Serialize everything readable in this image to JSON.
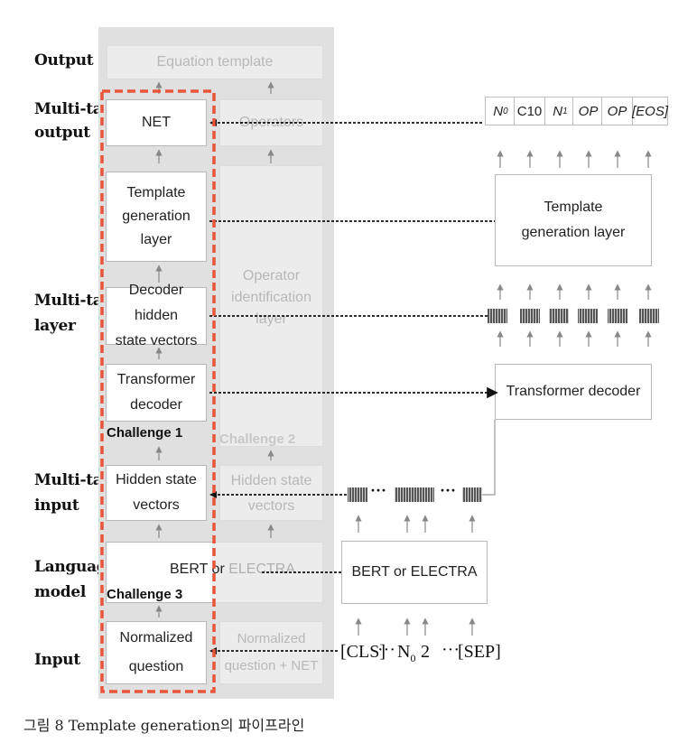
{
  "row_labels": {
    "output": "Output",
    "multitask_output_1": "Multi-task",
    "multitask_output_2": "output",
    "multitask_layer_1": "Multi-task",
    "multitask_layer_2": "layer",
    "multitask_input_1": "Multi-task",
    "multitask_input_2": "input",
    "language_model_1": "Language",
    "language_model_2": "model",
    "input": "Input"
  },
  "pipeline": {
    "equation_template": "Equation template",
    "net": "NET",
    "operators": "Operators",
    "template_generation_layer": "Template\ngeneration layer",
    "operator_identification_layer": "Operator\nidentification\nlayer",
    "decoder_hidden_state_vectors": "Decoder hidden\nstate vectors",
    "transformer_decoder": "Transformer\ndecoder",
    "challenge_1": "Challenge 1",
    "challenge_2": "Challenge 2",
    "hidden_state_vectors": "Hidden state\nvectors",
    "hidden_state_vectors_gray": "Hidden state\nvectors",
    "bert_or_electra_left": "BERT or ",
    "bert_or_electra_left_gray": "ELECTRA",
    "challenge_3": "Challenge 3",
    "normalized_question": "Normalized\nquestion",
    "normalized_question_net": "Normalized\nquestion + NET"
  },
  "detail": {
    "tokens": [
      "N",
      "C10",
      "N",
      "OP",
      "OP",
      "[EOS]"
    ],
    "token_subscripts": [
      "0",
      "",
      "1",
      "",
      "",
      ""
    ],
    "template_generation_layer": "Template\ngeneration layer",
    "transformer_decoder": "Transformer decoder",
    "bert_or_electra": "BERT or ELECTRA",
    "input_cls": "[CLS]",
    "input_dots1": "···",
    "input_n": "N",
    "input_n_sub": "0",
    "input_two": "2",
    "input_dots2": "···",
    "input_sep": "[SEP]",
    "hidden_dots1": "···",
    "hidden_dots2": "···"
  },
  "caption": "그림  8  Template generation의  파이프라인",
  "colors": {
    "dashed_red": "#e8553a",
    "panel_gray": "#e0e0e0"
  }
}
